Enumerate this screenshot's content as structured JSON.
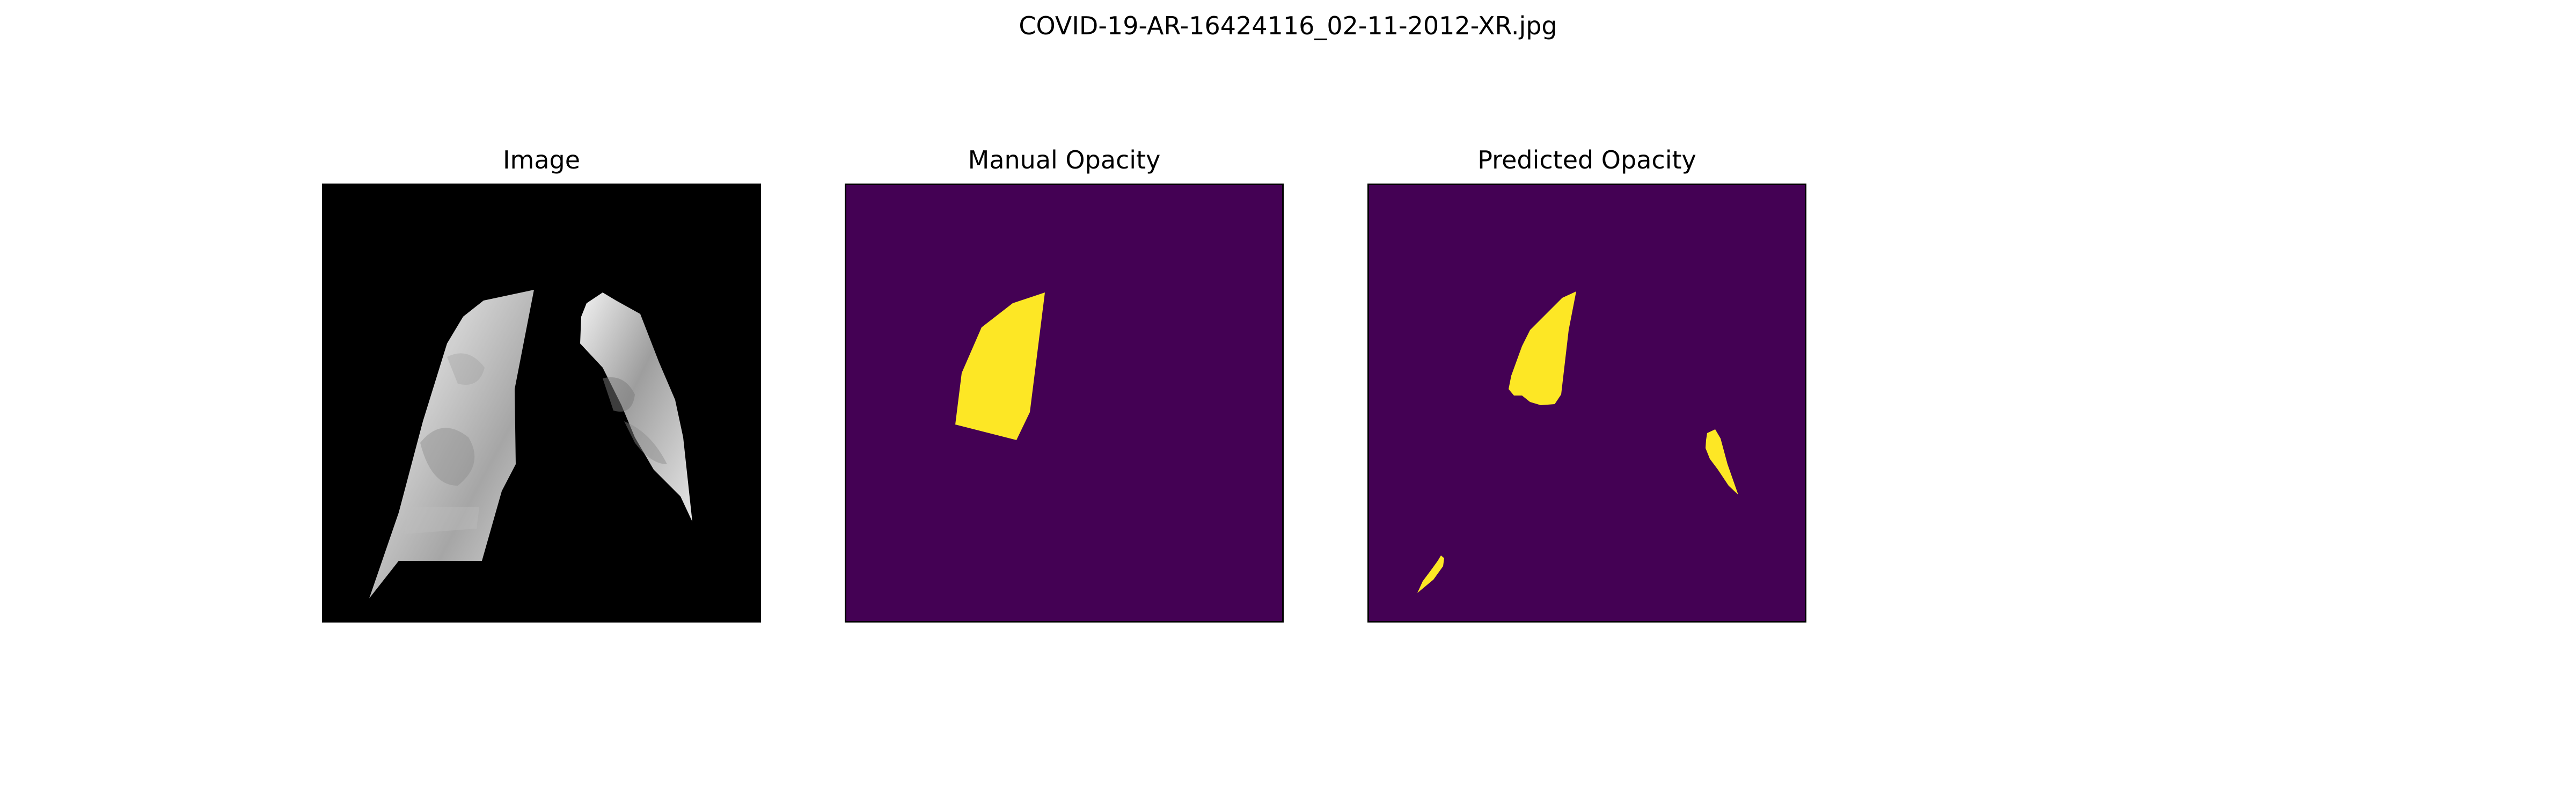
{
  "figure": {
    "suptitle": "COVID-19-AR-16424116_02-11-2012-XR.jpg"
  },
  "panels": [
    {
      "title": "Image",
      "content": "masked lung x-ray, grayscale on black"
    },
    {
      "title": "Manual Opacity",
      "content": "single yellow opacity region on purple background"
    },
    {
      "title": "Predicted Opacity",
      "content": "three yellow opacity regions on purple background"
    }
  ],
  "colors": {
    "background_image_panel": "#000000",
    "mask_background": "#440154",
    "mask_foreground": "#fde725",
    "lung_light": "#e8e8e8",
    "lung_mid": "#b8b8b8",
    "lung_dark": "#7a7a7a"
  }
}
